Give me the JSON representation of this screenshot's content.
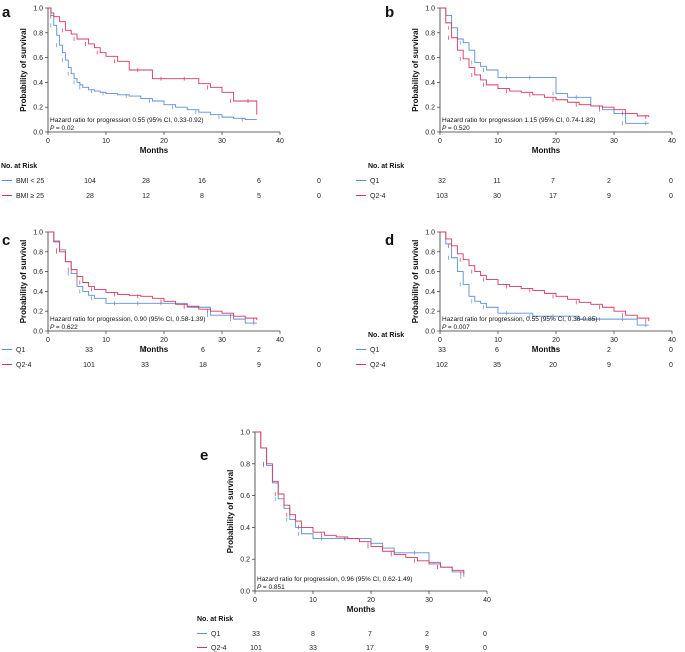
{
  "colors": {
    "series1": "#5b8fd6",
    "series2": "#d6385c",
    "axis": "#333333"
  },
  "chart_data": [
    {
      "id": "a",
      "type": "line",
      "ylabel": "Probability of survival",
      "xlabel": "Months",
      "xlim": [
        0,
        40
      ],
      "ylim": [
        0,
        1.0
      ],
      "xticks": [
        "0",
        "10",
        "20",
        "30",
        "40"
      ],
      "yticks": [
        "0.0",
        "0.2",
        "0.4",
        "0.6",
        "0.8",
        "1.0"
      ],
      "annotation": "Hazard ratio for progression 0.55 (95% CI, 0.33-0.92)",
      "pvalue": "= 0.02",
      "risk_header": "No. at Risk",
      "series": [
        {
          "name": "BMI < 25",
          "risk": [
            "104",
            "28",
            "16",
            "6",
            "0"
          ],
          "x": [
            0,
            0.5,
            1,
            1.5,
            2,
            2.5,
            3,
            3.5,
            4,
            4.5,
            5,
            5.5,
            6,
            7,
            8,
            9,
            10,
            12,
            14,
            16,
            18,
            20,
            22,
            24,
            26,
            28,
            30,
            32,
            34,
            36
          ],
          "y": [
            1.0,
            0.94,
            0.86,
            0.78,
            0.7,
            0.64,
            0.58,
            0.52,
            0.47,
            0.43,
            0.4,
            0.38,
            0.36,
            0.34,
            0.33,
            0.32,
            0.31,
            0.3,
            0.29,
            0.27,
            0.25,
            0.22,
            0.2,
            0.18,
            0.16,
            0.14,
            0.12,
            0.11,
            0.1,
            0.1
          ]
        },
        {
          "name": "BMI ≥ 25",
          "risk": [
            "28",
            "12",
            "8",
            "5",
            "0"
          ],
          "x": [
            0,
            0.5,
            1,
            2,
            3,
            4,
            5,
            6,
            7,
            8,
            9,
            10,
            12,
            14,
            16,
            18,
            20,
            22,
            24,
            26,
            28,
            30,
            32,
            34,
            35,
            36
          ],
          "y": [
            1.0,
            0.96,
            0.93,
            0.89,
            0.82,
            0.79,
            0.75,
            0.75,
            0.71,
            0.68,
            0.64,
            0.61,
            0.57,
            0.5,
            0.5,
            0.43,
            0.43,
            0.43,
            0.43,
            0.39,
            0.36,
            0.32,
            0.25,
            0.25,
            0.25,
            0.14
          ]
        }
      ]
    },
    {
      "id": "b",
      "type": "line",
      "ylabel": "Probability of survival",
      "xlabel": "Months",
      "xlim": [
        0,
        40
      ],
      "ylim": [
        0,
        1.0
      ],
      "xticks": [
        "0",
        "10",
        "20",
        "30",
        "40"
      ],
      "yticks": [
        "0.0",
        "0.2",
        "0.4",
        "0.6",
        "0.8",
        "1.0"
      ],
      "annotation": "Hazard ratio for progression 1.15 (95% CI, 0.74-1.82)",
      "pvalue": "= 0.520",
      "risk_header": "No. at Risk",
      "series": [
        {
          "name": "Q1",
          "risk": [
            "32",
            "11",
            "7",
            "2",
            "0"
          ],
          "x": [
            0,
            1,
            2,
            3,
            4,
            5,
            6,
            7,
            8,
            10,
            12,
            14,
            16,
            18,
            20,
            22,
            24,
            26,
            28,
            30,
            32,
            34,
            36
          ],
          "y": [
            1.0,
            0.94,
            0.84,
            0.75,
            0.72,
            0.66,
            0.56,
            0.53,
            0.5,
            0.44,
            0.44,
            0.44,
            0.44,
            0.44,
            0.31,
            0.28,
            0.28,
            0.21,
            0.18,
            0.15,
            0.07,
            0.07,
            0.07
          ]
        },
        {
          "name": "Q2-4",
          "risk": [
            "103",
            "30",
            "17",
            "9",
            "0"
          ],
          "x": [
            0,
            1,
            2,
            3,
            4,
            5,
            6,
            7,
            8,
            10,
            12,
            14,
            16,
            18,
            20,
            22,
            24,
            26,
            28,
            30,
            32,
            34,
            36
          ],
          "y": [
            1.0,
            0.88,
            0.76,
            0.66,
            0.59,
            0.52,
            0.46,
            0.42,
            0.38,
            0.35,
            0.33,
            0.32,
            0.3,
            0.28,
            0.26,
            0.24,
            0.22,
            0.21,
            0.2,
            0.18,
            0.15,
            0.13,
            0.12
          ]
        }
      ]
    },
    {
      "id": "c",
      "type": "line",
      "ylabel": "Probability of survival",
      "xlabel": "Months",
      "xlim": [
        0,
        40
      ],
      "ylim": [
        0,
        1.0
      ],
      "xticks": [
        "0",
        "10",
        "20",
        "30",
        "40"
      ],
      "yticks": [
        "0.0",
        "0.2",
        "0.4",
        "0.6",
        "0.8",
        "1.0"
      ],
      "annotation": "Hazard ratio for progression, 0.90 (95% CI, 0.58-1.39)",
      "pvalue": "= 0.622",
      "risk_header": "",
      "series": [
        {
          "name": "Q1",
          "risk": [
            "33",
            "7",
            "6",
            "2",
            "0"
          ],
          "x": [
            0,
            1,
            2,
            3,
            4,
            5,
            6,
            7,
            8,
            10,
            12,
            14,
            16,
            18,
            20,
            22,
            24,
            26,
            28,
            30,
            32,
            34,
            36
          ],
          "y": [
            1.0,
            0.91,
            0.82,
            0.7,
            0.58,
            0.45,
            0.4,
            0.36,
            0.33,
            0.28,
            0.28,
            0.28,
            0.28,
            0.28,
            0.28,
            0.28,
            0.24,
            0.24,
            0.16,
            0.16,
            0.12,
            0.08,
            0.08
          ]
        },
        {
          "name": "Q2-4",
          "risk": [
            "101",
            "33",
            "18",
            "9",
            "0"
          ],
          "x": [
            0,
            1,
            2,
            3,
            4,
            5,
            6,
            7,
            8,
            10,
            12,
            14,
            16,
            18,
            20,
            22,
            24,
            26,
            28,
            30,
            32,
            34,
            36
          ],
          "y": [
            1.0,
            0.9,
            0.8,
            0.7,
            0.62,
            0.55,
            0.49,
            0.45,
            0.42,
            0.39,
            0.37,
            0.36,
            0.35,
            0.33,
            0.3,
            0.27,
            0.25,
            0.22,
            0.2,
            0.18,
            0.15,
            0.13,
            0.11
          ]
        }
      ]
    },
    {
      "id": "d",
      "type": "line",
      "ylabel": "Probability of survival",
      "xlabel": "Months",
      "xlim": [
        0,
        40
      ],
      "ylim": [
        0,
        1.0
      ],
      "xticks": [
        "0",
        "10",
        "20",
        "30",
        "40"
      ],
      "yticks": [
        "0.0",
        "0.2",
        "0.4",
        "0.6",
        "0.8",
        "1.0"
      ],
      "annotation": "Hazard ratio for progression, 0.55 (95% CI, 0.36-0.85)",
      "pvalue": "= 0.007",
      "risk_header": "No. at Risk",
      "series": [
        {
          "name": "Q1",
          "risk": [
            "33",
            "6",
            "5",
            "2",
            "0"
          ],
          "x": [
            0,
            1,
            2,
            3,
            4,
            5,
            6,
            7,
            8,
            10,
            12,
            14,
            16,
            18,
            20,
            22,
            24,
            26,
            28,
            30,
            32,
            34,
            36
          ],
          "y": [
            1.0,
            0.88,
            0.74,
            0.6,
            0.47,
            0.35,
            0.3,
            0.28,
            0.24,
            0.18,
            0.18,
            0.18,
            0.15,
            0.15,
            0.15,
            0.15,
            0.12,
            0.12,
            0.12,
            0.12,
            0.12,
            0.06,
            0.06
          ]
        },
        {
          "name": "Q2-4",
          "risk": [
            "102",
            "35",
            "20",
            "9",
            "0"
          ],
          "x": [
            0,
            1,
            2,
            3,
            4,
            5,
            6,
            7,
            8,
            10,
            12,
            14,
            16,
            18,
            20,
            22,
            24,
            26,
            28,
            30,
            32,
            34,
            36
          ],
          "y": [
            1.0,
            0.93,
            0.86,
            0.78,
            0.72,
            0.66,
            0.6,
            0.56,
            0.52,
            0.47,
            0.45,
            0.43,
            0.41,
            0.38,
            0.35,
            0.32,
            0.29,
            0.27,
            0.24,
            0.2,
            0.16,
            0.13,
            0.1
          ]
        }
      ]
    },
    {
      "id": "e",
      "type": "line",
      "ylabel": "Probability of survival",
      "xlabel": "Months",
      "xlim": [
        0,
        40
      ],
      "ylim": [
        0,
        1.0
      ],
      "xticks": [
        "0",
        "10",
        "20",
        "30",
        "40"
      ],
      "yticks": [
        "0.0",
        "0.2",
        "0.4",
        "0.6",
        "0.8",
        "1.0"
      ],
      "annotation": "Hazard ratio for progression, 0.96 (95% CI, 0.62-1.49)",
      "pvalue": "= 0.851",
      "risk_header": "No. at Risk",
      "series": [
        {
          "name": "Q1",
          "risk": [
            "33",
            "8",
            "7",
            "2",
            "0"
          ],
          "x": [
            0,
            1,
            2,
            3,
            4,
            5,
            6,
            7,
            8,
            10,
            12,
            14,
            16,
            18,
            20,
            22,
            24,
            26,
            28,
            30,
            32,
            34,
            36
          ],
          "y": [
            1.0,
            0.9,
            0.79,
            0.68,
            0.58,
            0.52,
            0.45,
            0.4,
            0.36,
            0.33,
            0.33,
            0.33,
            0.33,
            0.33,
            0.3,
            0.27,
            0.24,
            0.24,
            0.24,
            0.18,
            0.15,
            0.12,
            0.09
          ]
        },
        {
          "name": "Q2-4",
          "risk": [
            "101",
            "33",
            "17",
            "9",
            "0"
          ],
          "x": [
            0,
            1,
            2,
            3,
            4,
            5,
            6,
            7,
            8,
            10,
            12,
            14,
            16,
            18,
            20,
            22,
            24,
            26,
            28,
            30,
            32,
            34,
            36
          ],
          "y": [
            1.0,
            0.9,
            0.8,
            0.69,
            0.61,
            0.54,
            0.48,
            0.44,
            0.4,
            0.37,
            0.35,
            0.34,
            0.33,
            0.31,
            0.28,
            0.25,
            0.23,
            0.21,
            0.19,
            0.17,
            0.15,
            0.13,
            0.11
          ]
        }
      ]
    }
  ]
}
